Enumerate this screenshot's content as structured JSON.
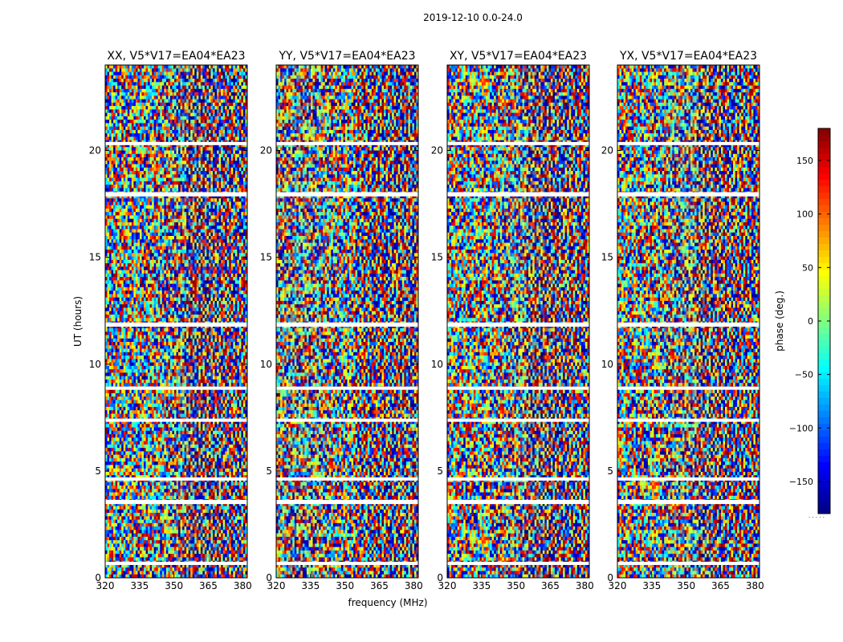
{
  "figure": {
    "suptitle": "2019-12-10 0.0-24.0",
    "colorbar_label": "phase (deg.)",
    "colorbar_ticks": [
      -150,
      -100,
      -50,
      0,
      50,
      100,
      150
    ],
    "colorbar_tick_labels": [
      "−150",
      "−100",
      "−50",
      "0",
      "50",
      "100",
      "150"
    ],
    "colorbar_range": [
      -180,
      180
    ],
    "colormap": [
      "#00007f",
      "#0000ff",
      "#007fff",
      "#00ffff",
      "#7fff7f",
      "#ffff00",
      "#ff7f00",
      "#ff0000",
      "#7f0000"
    ]
  },
  "chart_data": {
    "type": "heatmap",
    "title": "2019-12-10 0.0-24.0",
    "xlabel": "frequency (MHz)",
    "ylabel": "UT (hours)",
    "xlim": [
      320,
      382
    ],
    "ylim": [
      0,
      24
    ],
    "x_ticks": [
      320,
      335,
      350,
      365,
      380
    ],
    "x_tick_labels": [
      "320",
      "335",
      "350",
      "365",
      "380"
    ],
    "y_ticks": [
      0,
      5,
      10,
      15,
      20
    ],
    "y_tick_labels": [
      "0",
      "5",
      "10",
      "15",
      "20"
    ],
    "colorbar": {
      "label": "phase (deg.)",
      "vmin": -180,
      "vmax": 180
    },
    "blank_time_bands_hours": [
      [
        0.6,
        0.75
      ],
      [
        3.45,
        3.65
      ],
      [
        4.55,
        4.7
      ],
      [
        7.3,
        7.45
      ],
      [
        8.8,
        8.95
      ],
      [
        11.75,
        11.95
      ],
      [
        17.85,
        18.05
      ],
      [
        20.25,
        20.4
      ]
    ],
    "panels": [
      {
        "title": "XX, V5*V17=EA04*EA23",
        "polarization": "XX",
        "baseline": "V5*V17=EA04*EA23",
        "xlabel": "",
        "ylabel": "UT (hours)"
      },
      {
        "title": "YY, V5*V17=EA04*EA23",
        "polarization": "YY",
        "baseline": "V5*V17=EA04*EA23",
        "xlabel": "frequency (MHz)",
        "ylabel": ""
      },
      {
        "title": "XY, V5*V17=EA04*EA23",
        "polarization": "XY",
        "baseline": "V5*V17=EA04*EA23",
        "xlabel": "",
        "ylabel": ""
      },
      {
        "title": "YX, V5*V17=EA04*EA23",
        "polarization": "YX",
        "baseline": "V5*V17=EA04*EA23",
        "xlabel": "",
        "ylabel": ""
      }
    ]
  }
}
